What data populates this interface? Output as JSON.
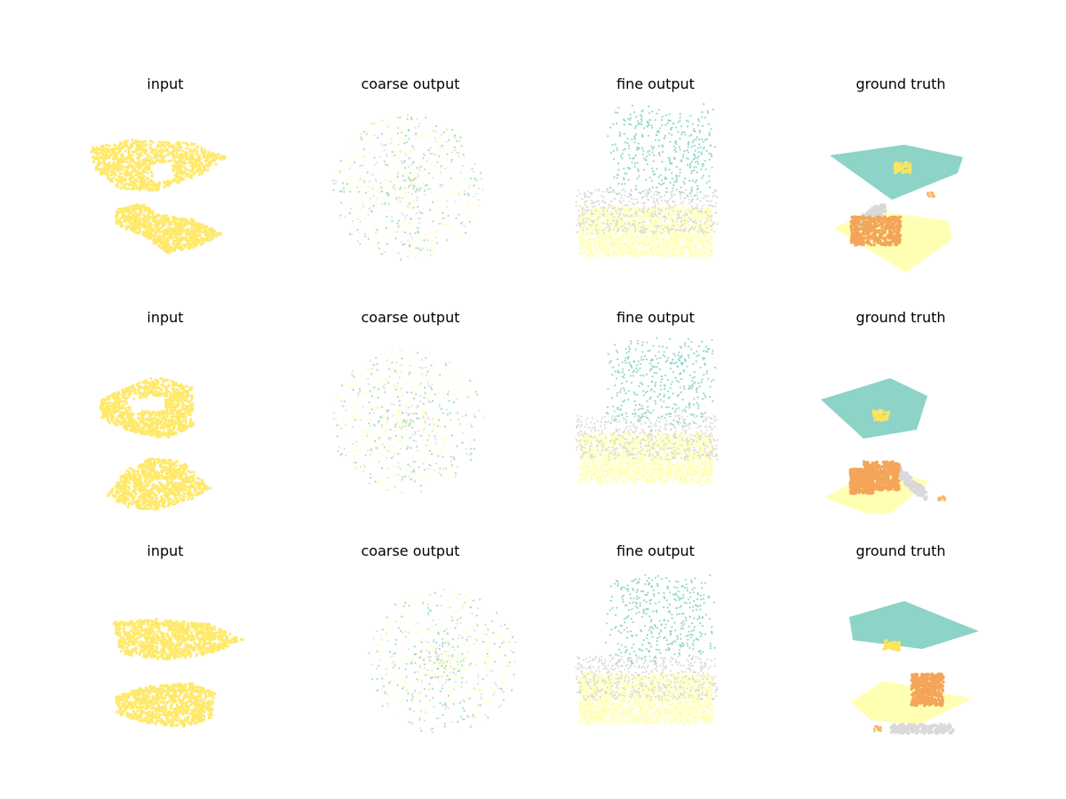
{
  "figure": {
    "rows": [
      {
        "panels": [
          {
            "title": "input",
            "kind": "input",
            "seed": 11
          },
          {
            "title": "coarse output",
            "kind": "coarse",
            "seed": 12
          },
          {
            "title": "fine output",
            "kind": "fine",
            "seed": 13
          },
          {
            "title": "ground truth",
            "kind": "truth",
            "seed": 14
          }
        ]
      },
      {
        "panels": [
          {
            "title": "input",
            "kind": "input",
            "seed": 21
          },
          {
            "title": "coarse output",
            "kind": "coarse",
            "seed": 22
          },
          {
            "title": "fine output",
            "kind": "fine",
            "seed": 23
          },
          {
            "title": "ground truth",
            "kind": "truth",
            "seed": 24
          }
        ]
      },
      {
        "panels": [
          {
            "title": "input",
            "kind": "input",
            "seed": 31
          },
          {
            "title": "coarse output",
            "kind": "coarse",
            "seed": 32
          },
          {
            "title": "fine output",
            "kind": "fine",
            "seed": 33
          },
          {
            "title": "ground truth",
            "kind": "truth",
            "seed": 34
          }
        ]
      }
    ]
  },
  "colors": {
    "input": "#ffe96b",
    "teal": "#8dd3c7",
    "lightyellow": "#ffffb3",
    "gray": "#d9d9d9",
    "orange": "#fdb462",
    "darkorange": "#f4a55a"
  }
}
